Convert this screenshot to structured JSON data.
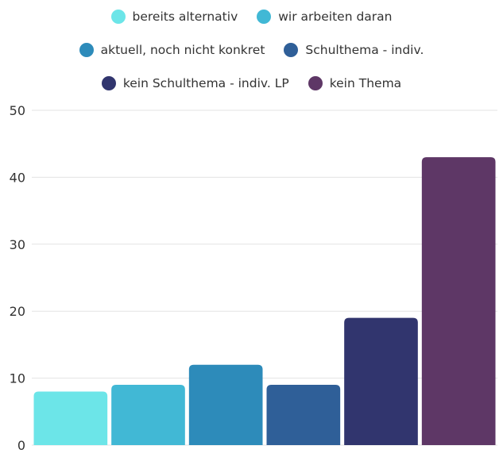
{
  "chart_data": {
    "type": "bar",
    "categories": [
      "bereits alternativ",
      "wir arbeiten daran",
      "aktuell, noch nicht konkret",
      "Schulthema - indiv.",
      "kein Schulthema - indiv. LP",
      "kein Thema"
    ],
    "values": [
      8,
      9,
      12,
      9,
      19,
      43
    ],
    "colors": [
      "#6ce5e8",
      "#41b8d5",
      "#2d8bba",
      "#2f5f98",
      "#31356e",
      "#5e3766"
    ],
    "ylim": [
      0,
      50
    ],
    "yticks": [
      0,
      10,
      20,
      30,
      40,
      50
    ],
    "grid": true,
    "legend": "top"
  }
}
